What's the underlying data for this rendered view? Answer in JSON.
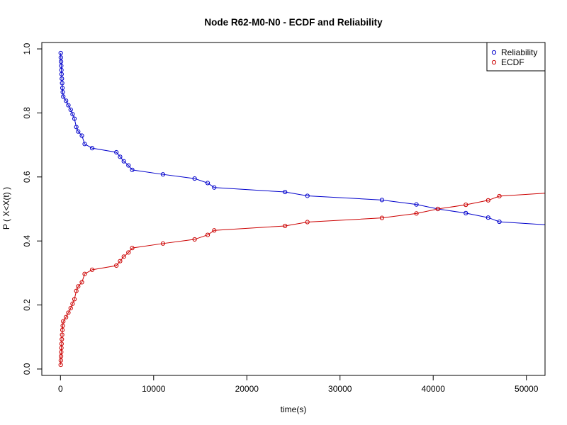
{
  "chart_data": {
    "type": "line",
    "title": "Node R62-M0-N0 - ECDF and Reliability",
    "xlabel": "time(s)",
    "ylabel": "P ( X<X(t) )",
    "xlim": [
      -2000,
      52000
    ],
    "ylim": [
      -0.02,
      1.02
    ],
    "x_ticks": [
      0,
      10000,
      20000,
      30000,
      40000,
      50000
    ],
    "x_tick_labels": [
      "0",
      "10000",
      "20000",
      "30000",
      "40000",
      "50000"
    ],
    "y_ticks": [
      0.0,
      0.2,
      0.4,
      0.6,
      0.8,
      1.0
    ],
    "y_tick_labels": [
      "0.0",
      "0.2",
      "0.4",
      "0.6",
      "0.8",
      "1.0"
    ],
    "grid": false,
    "legend_position": "top-right",
    "legend": [
      {
        "label": "Reliability",
        "color": "#0000CC"
      },
      {
        "label": "ECDF",
        "color": "#CC0000"
      }
    ],
    "series": [
      {
        "name": "Reliability",
        "color": "#0000CC",
        "x": [
          30,
          40,
          60,
          80,
          100,
          120,
          150,
          180,
          210,
          250,
          300,
          600,
          850,
          1100,
          1300,
          1500,
          1700,
          1900,
          2300,
          2600,
          3400,
          6000,
          6400,
          6800,
          7300,
          7700,
          11000,
          14400,
          15800,
          16500,
          24100,
          26500,
          34500,
          38200,
          40500,
          43500,
          45900,
          47100,
          53000
        ],
        "y": [
          0.987,
          0.973,
          0.96,
          0.947,
          0.934,
          0.921,
          0.907,
          0.893,
          0.878,
          0.865,
          0.851,
          0.838,
          0.824,
          0.81,
          0.796,
          0.782,
          0.756,
          0.742,
          0.729,
          0.703,
          0.69,
          0.677,
          0.663,
          0.649,
          0.636,
          0.622,
          0.608,
          0.595,
          0.581,
          0.567,
          0.553,
          0.541,
          0.528,
          0.514,
          0.5,
          0.487,
          0.473,
          0.46,
          0.449
        ]
      },
      {
        "name": "ECDF",
        "color": "#CC0000",
        "x": [
          30,
          40,
          60,
          80,
          100,
          120,
          150,
          180,
          210,
          250,
          300,
          600,
          850,
          1100,
          1300,
          1500,
          1700,
          1900,
          2300,
          2600,
          3400,
          6000,
          6400,
          6800,
          7300,
          7700,
          11000,
          14400,
          15800,
          16500,
          24100,
          26500,
          34500,
          38200,
          40500,
          43500,
          45900,
          47100,
          53000
        ],
        "y": [
          0.013,
          0.027,
          0.04,
          0.053,
          0.066,
          0.079,
          0.093,
          0.107,
          0.122,
          0.135,
          0.149,
          0.162,
          0.176,
          0.19,
          0.204,
          0.218,
          0.244,
          0.258,
          0.271,
          0.297,
          0.31,
          0.323,
          0.337,
          0.351,
          0.364,
          0.378,
          0.392,
          0.405,
          0.419,
          0.433,
          0.447,
          0.459,
          0.472,
          0.486,
          0.5,
          0.513,
          0.527,
          0.54,
          0.551
        ]
      }
    ]
  }
}
